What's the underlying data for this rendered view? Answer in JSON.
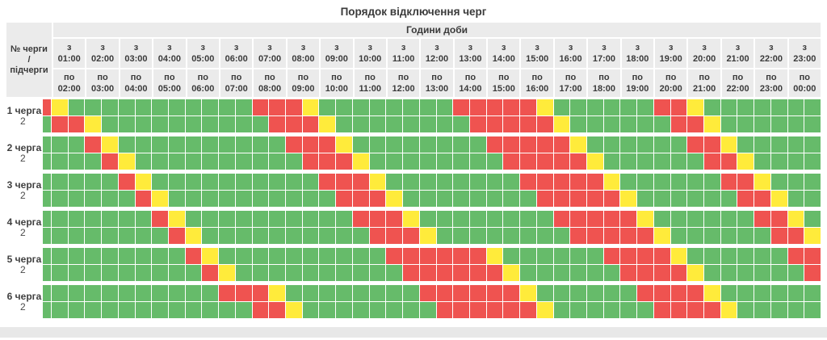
{
  "title": "Порядок відключення черг",
  "header": {
    "corner": [
      "№ черги",
      "/",
      "підчерги"
    ],
    "band": "Години доби",
    "from_word": "з",
    "to_word": "по"
  },
  "chart_data": {
    "type": "heatmap",
    "title": "Порядок відключення черг",
    "x_group_label": "Години доби",
    "columns_per_hour": 2,
    "has_leading_half_column": true,
    "times_from": [
      "01:00",
      "02:00",
      "03:00",
      "04:00",
      "05:00",
      "06:00",
      "07:00",
      "08:00",
      "09:00",
      "10:00",
      "11:00",
      "12:00",
      "13:00",
      "14:00",
      "15:00",
      "16:00",
      "17:00",
      "18:00",
      "19:00",
      "20:00",
      "21:00",
      "22:00",
      "23:00"
    ],
    "times_to": [
      "02:00",
      "03:00",
      "04:00",
      "05:00",
      "06:00",
      "07:00",
      "08:00",
      "09:00",
      "10:00",
      "11:00",
      "12:00",
      "13:00",
      "14:00",
      "15:00",
      "16:00",
      "17:00",
      "18:00",
      "19:00",
      "20:00",
      "21:00",
      "22:00",
      "23:00",
      "00:00"
    ],
    "queues": [
      {
        "label": "1 черга",
        "sub": "2"
      },
      {
        "label": "2 черга",
        "sub": "2"
      },
      {
        "label": "3 черга",
        "sub": "2"
      },
      {
        "label": "4 черга",
        "sub": "2"
      },
      {
        "label": "5 черга",
        "sub": "2"
      },
      {
        "label": "6 черга",
        "sub": "2"
      }
    ],
    "grid": [
      "RYGGGGGGGGGGGRRRYGGGGGGGGRRRRRYGGGGGGRRYGGGGGGG",
      "GRRYGGGGGGGGGGRRRYGGGGGGGGRRRRRYGGGGGGRRYGGGGGG",
      "GGGRYGGGGGGGGGGRRRYGGGGGGGGRRRRRYGGGGGGRRYGGGGG",
      "GGGGRYGGGGGGGGGGRRRYGGGGGGGGRRRRRYGGGGGGRRYGGGG",
      "GGGGGRYGGGGGGGGGGRRRYGGGGGGGGRRRRRYGGGGGGRRYGGG",
      "GGGGGGRYGGGGGGGGGGRRRYGGGGGGGGRRRRRYGGGGGGRRYGG",
      "GGGGGGGRYGGGGGGGGGGRRRYGGGGGGGGRRRRRYGGGGGGRRYG",
      "GGGGGGGGRYGGGGGGGGGGRRRYGGGGGGGGRRRRRYGGGGGGRRY",
      "GGGGGGGGGRYGGGGGGGGGGRRRRRRYGGGGGGRRRRYGGGGGGRR",
      "GGGGGGGGGGRYGGGGGGGGGGRRRRRRYGGGGGGRRRRYGGGGGGR",
      "GGGGGGGGGGGRRRYGGGGGGGGRRRRRRYGGGGGGRRRRYGGGGGG",
      "GGGGGGGGGGGGGRRYGGGGGGGGRRRRRRYGGGGGGRRRRYGGGGG"
    ],
    "state_colors": {
      "G": "#66bb6a",
      "R": "#ef5350",
      "Y": "#ffeb3b"
    },
    "state_meaning": {
      "G": "power-on",
      "R": "power-off",
      "Y": "possible-outage"
    }
  },
  "colors": {
    "header_bg": "#ebebeb",
    "text": "#3a3a3a",
    "scrollbar_track": "#e8e8e8"
  }
}
